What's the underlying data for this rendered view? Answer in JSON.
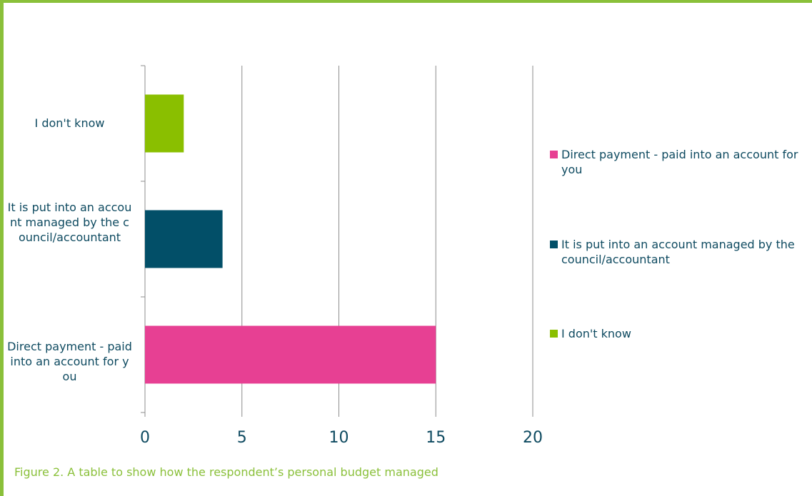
{
  "chart_data": {
    "type": "bar",
    "orientation": "horizontal",
    "categories": [
      "I don't know",
      "It is put into an account managed by the council/accountant",
      "Direct payment - paid into an account for you"
    ],
    "values": [
      2,
      4,
      15
    ],
    "xlim": [
      0,
      20
    ],
    "x_ticks": [
      "0",
      "5",
      "10",
      "15",
      "20"
    ],
    "grid": "vertical",
    "legend_position": "right",
    "colors": [
      "#8abf00",
      "#024f68",
      "#e74093"
    ],
    "legend": [
      {
        "label": "Direct payment - paid into an account for you",
        "color": "#e74093"
      },
      {
        "label": "It is put into an account managed by the council/accountant",
        "color": "#024f68"
      },
      {
        "label": "I don't know",
        "color": "#8abf00"
      }
    ],
    "caption": "Figure 2. A table to show how the respondent’s personal budget managed"
  }
}
